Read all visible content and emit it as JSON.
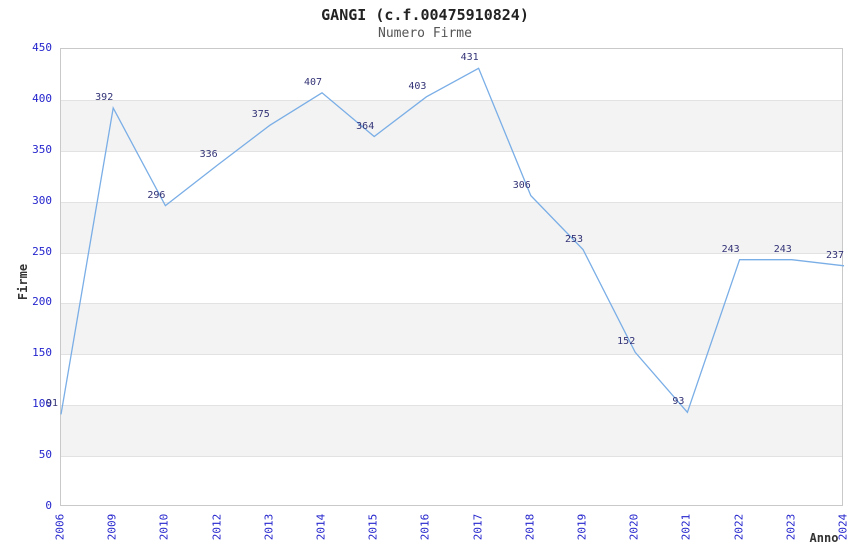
{
  "title": "GANGI (c.f.00475910824)",
  "subtitle": "Numero Firme",
  "colors": {
    "line": "#7aaee6",
    "tick_label": "#2424cd",
    "data_label": "#333377",
    "band": "#f3f3f3",
    "grid": "#e2e2e2",
    "plot_border": "#c9c9c9",
    "title": "#222222",
    "subtitle": "#555555",
    "axis_title": "#333333",
    "background": "#ffffff"
  },
  "chart_data": {
    "type": "line",
    "title": "GANGI (c.f.00475910824)",
    "subtitle": "Numero Firme",
    "xlabel": "Anno",
    "ylabel": "Firme",
    "categories": [
      "2006",
      "2009",
      "2010",
      "2012",
      "2013",
      "2014",
      "2015",
      "2016",
      "2017",
      "2018",
      "2019",
      "2020",
      "2021",
      "2022",
      "2023",
      "2024"
    ],
    "values": [
      91,
      392,
      296,
      336,
      375,
      407,
      364,
      403,
      431,
      306,
      253,
      152,
      93,
      243,
      243,
      237
    ],
    "point_labels": [
      "91",
      "392",
      "296",
      "336",
      "375",
      "407",
      "364",
      "403",
      "431",
      "306",
      "253",
      "152",
      "93",
      "243",
      "243",
      "237"
    ],
    "yticks": [
      0,
      50,
      100,
      150,
      200,
      250,
      300,
      350,
      400,
      450
    ],
    "ylim": [
      0,
      450
    ],
    "grid": "horizontal-bands-alternating",
    "legend": "none",
    "markers": "none"
  }
}
